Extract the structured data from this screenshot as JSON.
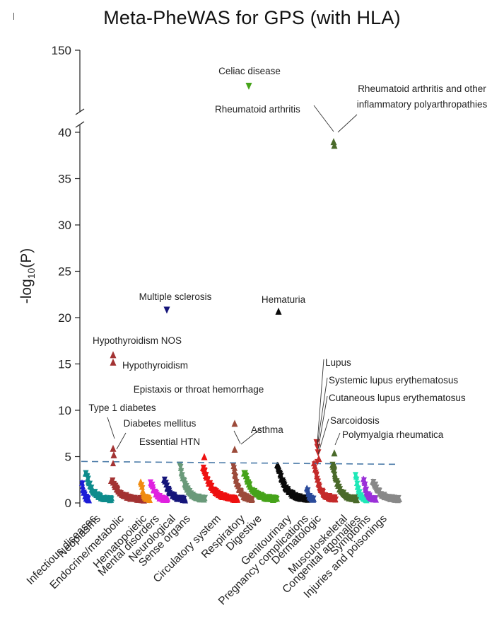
{
  "chart_data": {
    "type": "scatter",
    "title": "Meta-PheWAS for GPS (with HLA)",
    "ylabel_main": "-log",
    "ylabel_sub": "10",
    "ylabel_var": "(P)",
    "yticks_lower": [
      0,
      5,
      10,
      15,
      20,
      25,
      30,
      35,
      40
    ],
    "ytick_upper": 150,
    "ylim_lower": [
      0,
      41
    ],
    "axis_break": true,
    "significance_threshold": 4.4,
    "categories": [
      {
        "name": "Infectious diseases",
        "color": "#1c1cd6"
      },
      {
        "name": "Neoplasms",
        "color": "#0e8c8c"
      },
      {
        "name": "Endocrine/metabolic",
        "color": "#a33333"
      },
      {
        "name": "Hematopoietic",
        "color": "#f08c10"
      },
      {
        "name": "Mental disorders",
        "color": "#e020e0"
      },
      {
        "name": "Neurological",
        "color": "#15157a"
      },
      {
        "name": "Sense organs",
        "color": "#6a9a7a"
      },
      {
        "name": "Circulatory system",
        "color": "#ee1111"
      },
      {
        "name": "Respiratory",
        "color": "#9c4a3a"
      },
      {
        "name": "Digestive",
        "color": "#46a31a"
      },
      {
        "name": "Genitourinary",
        "color": "#0a0a0a"
      },
      {
        "name": "Pregnancy complications",
        "color": "#2a4a9a"
      },
      {
        "name": "Dermatologic",
        "color": "#c42a2a"
      },
      {
        "name": "Musculoskeletal",
        "color": "#4a6a2a"
      },
      {
        "name": "Congenital anomalies",
        "color": "#20e8b8"
      },
      {
        "name": "Symptoms",
        "color": "#9a30d8"
      },
      {
        "name": "Injuries and poisonings",
        "color": "#888888"
      }
    ],
    "highlighted_points": [
      {
        "label": "Celiac disease",
        "category": "Digestive",
        "neglogp": 146,
        "direction": "down",
        "upper_panel": true
      },
      {
        "label": "Rheumatoid arthritis",
        "category": "Musculoskeletal",
        "neglogp": 39.0,
        "direction": "up"
      },
      {
        "label": "Rheumatoid arthritis and other inflammatory polyarthropathies",
        "category": "Musculoskeletal",
        "neglogp": 38.6,
        "direction": "up"
      },
      {
        "label": "Multiple sclerosis",
        "category": "Neurological",
        "neglogp": 20.8,
        "direction": "down"
      },
      {
        "label": "Hematuria",
        "category": "Genitourinary",
        "neglogp": 20.7,
        "direction": "up"
      },
      {
        "label": "Hypothyroidism NOS",
        "category": "Endocrine/metabolic",
        "neglogp": 16.0,
        "direction": "up"
      },
      {
        "label": "Hypothyroidism",
        "category": "Endocrine/metabolic",
        "neglogp": 15.2,
        "direction": "up"
      },
      {
        "label": "Epistaxis or throat hemorrhage",
        "category": "Respiratory",
        "neglogp": 8.6,
        "direction": "up"
      },
      {
        "label": "Type 1 diabetes",
        "category": "Endocrine/metabolic",
        "neglogp": 5.9,
        "direction": "up"
      },
      {
        "label": "Diabetes mellitus",
        "category": "Endocrine/metabolic",
        "neglogp": 5.2,
        "direction": "up"
      },
      {
        "label": "Essential HTN",
        "category": "Circulatory system",
        "neglogp": 5.0,
        "direction": "up"
      },
      {
        "label": "Asthma",
        "category": "Respiratory",
        "neglogp": 5.8,
        "direction": "up"
      },
      {
        "label": "Lupus",
        "category": "Dermatologic",
        "neglogp": 6.5,
        "direction": "down"
      },
      {
        "label": "Systemic lupus erythematosus",
        "category": "Dermatologic",
        "neglogp": 6.0,
        "direction": "down"
      },
      {
        "label": "Cutaneous lupus erythematosus",
        "category": "Dermatologic",
        "neglogp": 5.4,
        "direction": "down"
      },
      {
        "label": "Sarcoidosis",
        "category": "Dermatologic",
        "neglogp": 4.8,
        "direction": "up"
      },
      {
        "label": "Polymyalgia rheumatica",
        "category": "Musculoskeletal",
        "neglogp": 5.4,
        "direction": "up"
      }
    ],
    "category_peaks": [
      2.2,
      3.2,
      2.4,
      2.3,
      2.2,
      2.5,
      4.1,
      3.8,
      4.0,
      3.2,
      4.1,
      1.6,
      4.3,
      4.1,
      3.0,
      2.6,
      2.3
    ]
  }
}
